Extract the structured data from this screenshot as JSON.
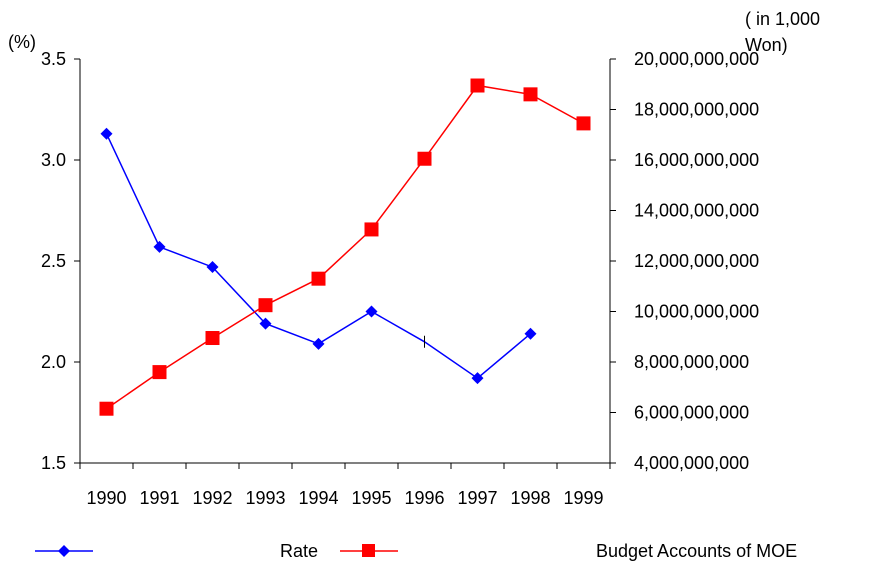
{
  "chart_data": {
    "type": "line",
    "categories": [
      "1990",
      "1991",
      "1992",
      "1993",
      "1994",
      "1995",
      "1996",
      "1997",
      "1998",
      "1999"
    ],
    "y_left": {
      "unit_label": "(%)",
      "range": [
        1.5,
        3.5
      ],
      "ticks": [
        "1.5",
        "2.0",
        "2.5",
        "3.0",
        "3.5"
      ],
      "tick_values": [
        1.5,
        2.0,
        2.5,
        3.0,
        3.5
      ]
    },
    "y_right": {
      "unit_label_line1": "( in 1,000",
      "unit_label_line2": "Won)",
      "range": [
        4000000000,
        20000000000
      ],
      "ticks": [
        "4,000,000,000",
        "6,000,000,000",
        "8,000,000,000",
        "10,000,000,000",
        "12,000,000,000",
        "14,000,000,000",
        "16,000,000,000",
        "18,000,000,000",
        "20,000,000,000"
      ],
      "tick_values": [
        4000000000,
        6000000000,
        8000000000,
        10000000000,
        12000000000,
        14000000000,
        16000000000,
        18000000000,
        20000000000
      ]
    },
    "series": [
      {
        "name": "Rate",
        "axis": "left",
        "color": "#0000ff",
        "marker": "diamond",
        "values": [
          3.13,
          2.57,
          2.47,
          2.19,
          2.09,
          2.25,
          2.1,
          1.92,
          2.14,
          null
        ],
        "markers_shown": [
          true,
          true,
          true,
          true,
          true,
          true,
          false,
          true,
          true,
          false
        ]
      },
      {
        "name": "Budget Accounts of MOE",
        "axis": "right",
        "color": "#ff0000",
        "marker": "square",
        "values": [
          6150000000,
          7600000000,
          8950000000,
          10250000000,
          11300000000,
          13250000000,
          16050000000,
          18950000000,
          18600000000,
          17450000000
        ]
      }
    ],
    "legend": {
      "placement": "bottom",
      "entries": [
        "Rate",
        "Budget Accounts of MOE"
      ]
    },
    "grid": false
  }
}
